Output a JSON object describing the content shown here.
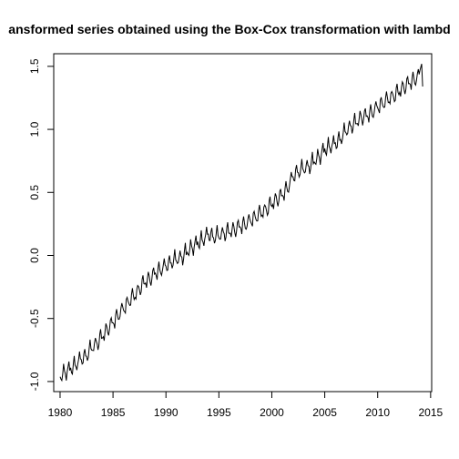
{
  "chart_data": {
    "type": "line",
    "title": "ansformed series obtained using the Box-Cox transformation with lambd",
    "xlabel": "",
    "ylabel": "",
    "xlim": [
      1979.4,
      2015.1
    ],
    "ylim": [
      -1.08,
      1.6
    ],
    "x_ticks": [
      1980,
      1985,
      1990,
      1995,
      2000,
      2005,
      2010,
      2015
    ],
    "x_tick_labels": [
      "1980",
      "1985",
      "1990",
      "1995",
      "2000",
      "2005",
      "2010",
      "2015"
    ],
    "y_ticks": [
      -1.0,
      -0.5,
      0.0,
      0.5,
      1.0,
      1.5
    ],
    "y_tick_labels": [
      "-1.0",
      "-0.5",
      "0.0",
      "0.5",
      "1.0",
      "1.5"
    ],
    "grid": false,
    "legend": "none",
    "line_color": "#000000",
    "series": [
      {
        "x": [
          1980.0,
          1980.5,
          1981.0,
          1981.5,
          1982.0,
          1982.5,
          1983.0,
          1983.5,
          1984.0,
          1984.5,
          1985.0,
          1985.5,
          1986.0,
          1986.5,
          1987.0,
          1987.5,
          1988.0,
          1988.5,
          1989.0,
          1989.5,
          1990.0,
          1990.5,
          1991.0,
          1991.5,
          1992.0,
          1992.5,
          1993.0,
          1993.5,
          1994.0,
          1994.5,
          1995.0,
          1995.5,
          1996.0,
          1996.5,
          1997.0,
          1997.5,
          1998.0,
          1998.5,
          1999.0,
          1999.5,
          2000.0,
          2000.5,
          2001.0,
          2001.5,
          2002.0,
          2002.5,
          2003.0,
          2003.5,
          2004.0,
          2004.5,
          2005.0,
          2005.5,
          2006.0,
          2006.5,
          2007.0,
          2007.5,
          2008.0,
          2008.5,
          2009.0,
          2009.5,
          2010.0,
          2010.5,
          2011.0,
          2011.5,
          2012.0,
          2012.5,
          2013.0,
          2013.5,
          2014.0
        ],
        "y": [
          -0.97,
          -0.93,
          -0.91,
          -0.87,
          -0.83,
          -0.8,
          -0.74,
          -0.7,
          -0.65,
          -0.59,
          -0.54,
          -0.48,
          -0.43,
          -0.37,
          -0.33,
          -0.27,
          -0.22,
          -0.19,
          -0.15,
          -0.12,
          -0.09,
          -0.06,
          -0.04,
          -0.02,
          0.02,
          0.06,
          0.09,
          0.12,
          0.16,
          0.14,
          0.15,
          0.17,
          0.18,
          0.2,
          0.22,
          0.24,
          0.27,
          0.3,
          0.33,
          0.36,
          0.4,
          0.44,
          0.47,
          0.53,
          0.62,
          0.66,
          0.68,
          0.7,
          0.74,
          0.78,
          0.83,
          0.86,
          0.88,
          0.92,
          0.98,
          1.02,
          1.05,
          1.09,
          1.1,
          1.13,
          1.17,
          1.2,
          1.23,
          1.26,
          1.29,
          1.33,
          1.36,
          1.39,
          1.42
        ]
      }
    ]
  }
}
